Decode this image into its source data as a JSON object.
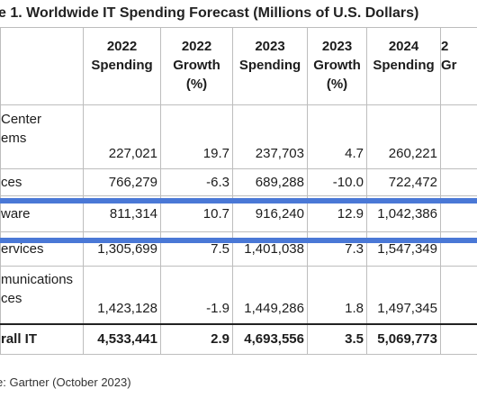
{
  "title": "e 1. Worldwide IT Spending Forecast (Millions of U.S. Dollars)",
  "headers": [
    {
      "line1": "2022",
      "line2": "Spending",
      "line3": ""
    },
    {
      "line1": "2022",
      "line2": "Growth",
      "line3": "(%)"
    },
    {
      "line1": "2023",
      "line2": "Spending",
      "line3": ""
    },
    {
      "line1": "2023",
      "line2": "Growth",
      "line3": "(%)"
    },
    {
      "line1": "2024",
      "line2": "Spending",
      "line3": ""
    },
    {
      "line1": "2",
      "line2": "Gr",
      "line3": ""
    }
  ],
  "rows": [
    {
      "cat1": "Center",
      "cat2": "ems",
      "values": [
        "227,021",
        "19.7",
        "237,703",
        "4.7",
        "260,221",
        ""
      ]
    },
    {
      "cat1": "ces",
      "cat2": "",
      "values": [
        "766,279",
        "-6.3",
        "689,288",
        "-10.0",
        "722,472",
        ""
      ]
    },
    {
      "cat1": "ware",
      "cat2": "",
      "values": [
        "811,314",
        "10.7",
        "916,240",
        "12.9",
        "1,042,386",
        ""
      ]
    },
    {
      "cat1": "ervices",
      "cat2": "",
      "values": [
        "1,305,699",
        "7.5",
        "1,401,038",
        "7.3",
        "1,547,349",
        ""
      ]
    },
    {
      "cat1": "munications",
      "cat2": "ces",
      "values": [
        "1,423,128",
        "-1.9",
        "1,449,286",
        "1.8",
        "1,497,345",
        ""
      ]
    },
    {
      "cat1": "rall IT",
      "cat2": "",
      "values": [
        "4,533,441",
        "2.9",
        "4,693,556",
        "3.5",
        "5,069,773",
        ""
      ]
    }
  ],
  "source": "e: Gartner (October 2023)",
  "colors": {
    "highlight": "#4a78d6",
    "text": "#1c1c1c",
    "grid": "#bdbdbd"
  }
}
